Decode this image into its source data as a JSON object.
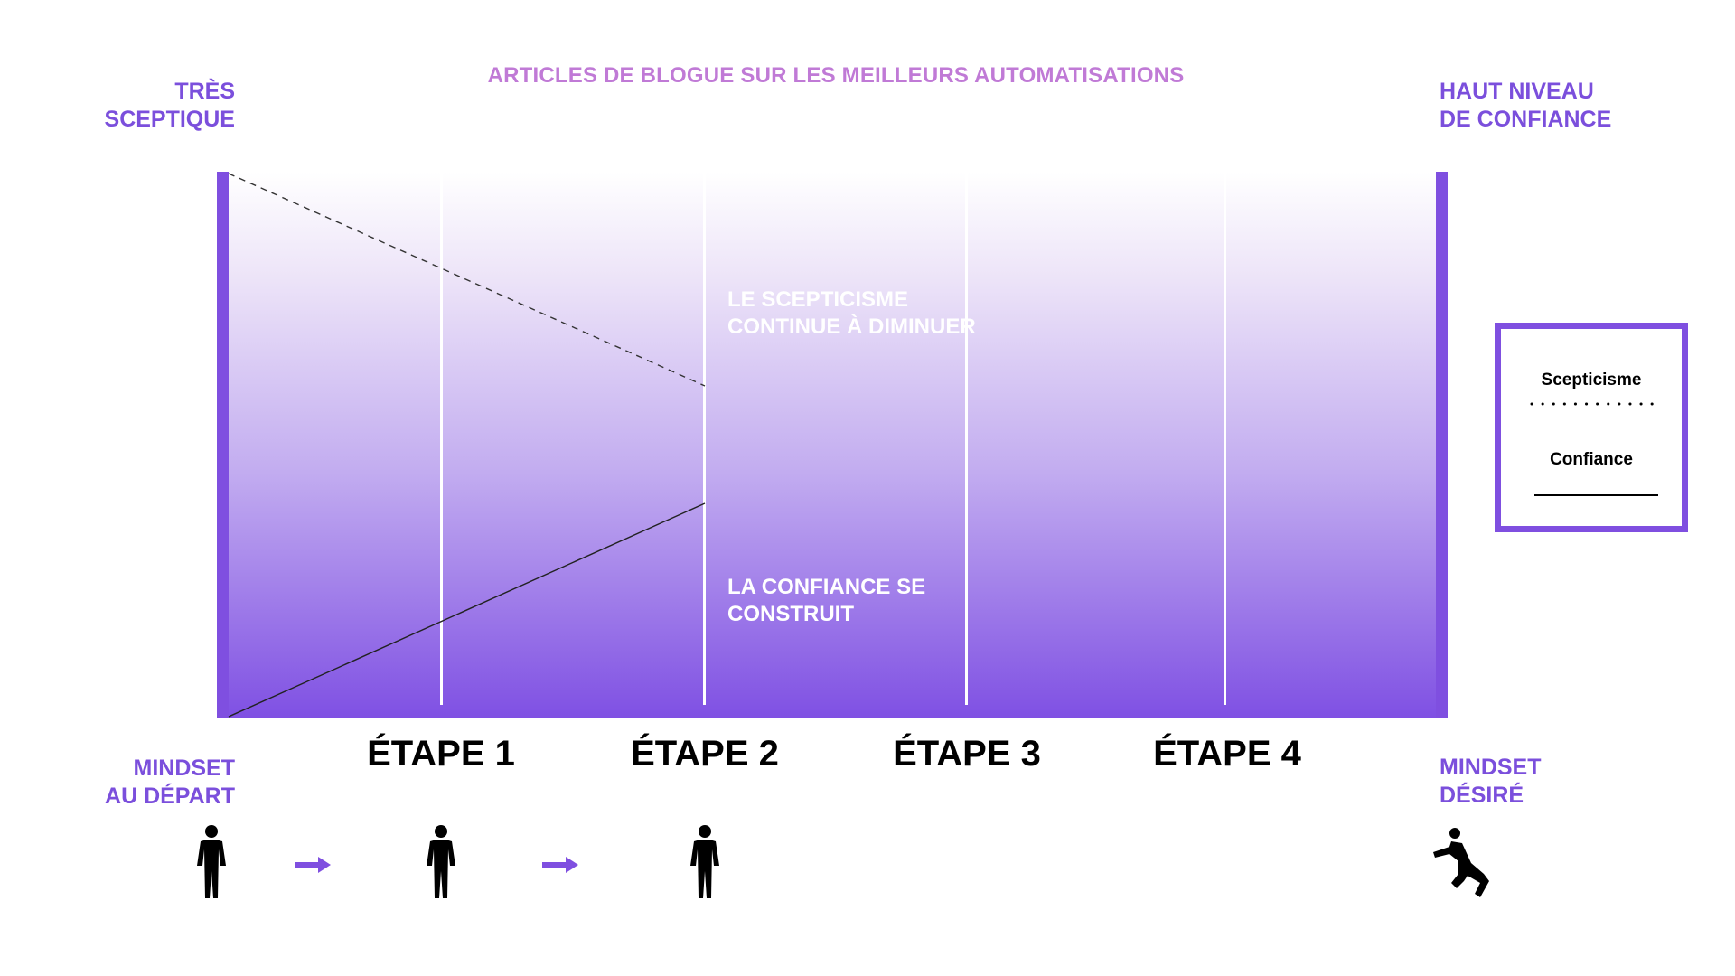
{
  "header": {
    "title": "ARTICLES DE BLOGUE SUR LES MEILLEURS AUTOMATISATIONS"
  },
  "top_left_label": {
    "line1": "TRÈS",
    "line2": "SCEPTIQUE"
  },
  "top_right_label": {
    "line1": "HAUT NIVEAU",
    "line2": "DE CONFIANCE"
  },
  "annotations": {
    "skepticism": {
      "line1": "LE SCEPTICISME",
      "line2": "CONTINUE À DIMINUER"
    },
    "confidence": {
      "line1": "LA CONFIANCE SE",
      "line2": "CONSTRUIT"
    }
  },
  "stages": [
    "ÉTAPE 1",
    "ÉTAPE 2",
    "ÉTAPE 3",
    "ÉTAPE 4"
  ],
  "bottom_left_label": {
    "line1": "MINDSET",
    "line2": "AU DÉPART"
  },
  "bottom_right_label": {
    "line1": "MINDSET",
    "line2": "DÉSIRÉ"
  },
  "legend": {
    "skepticism": "Scepticisme",
    "confidence": "Confiance"
  },
  "icons": {
    "person": "person-standing-icon",
    "arrow": "arrow-right-icon",
    "jumping": "person-jumping-icon"
  },
  "colors": {
    "accent": "#7f4fe0",
    "title": "#c07ad6",
    "annotation": "#ffffff"
  }
}
